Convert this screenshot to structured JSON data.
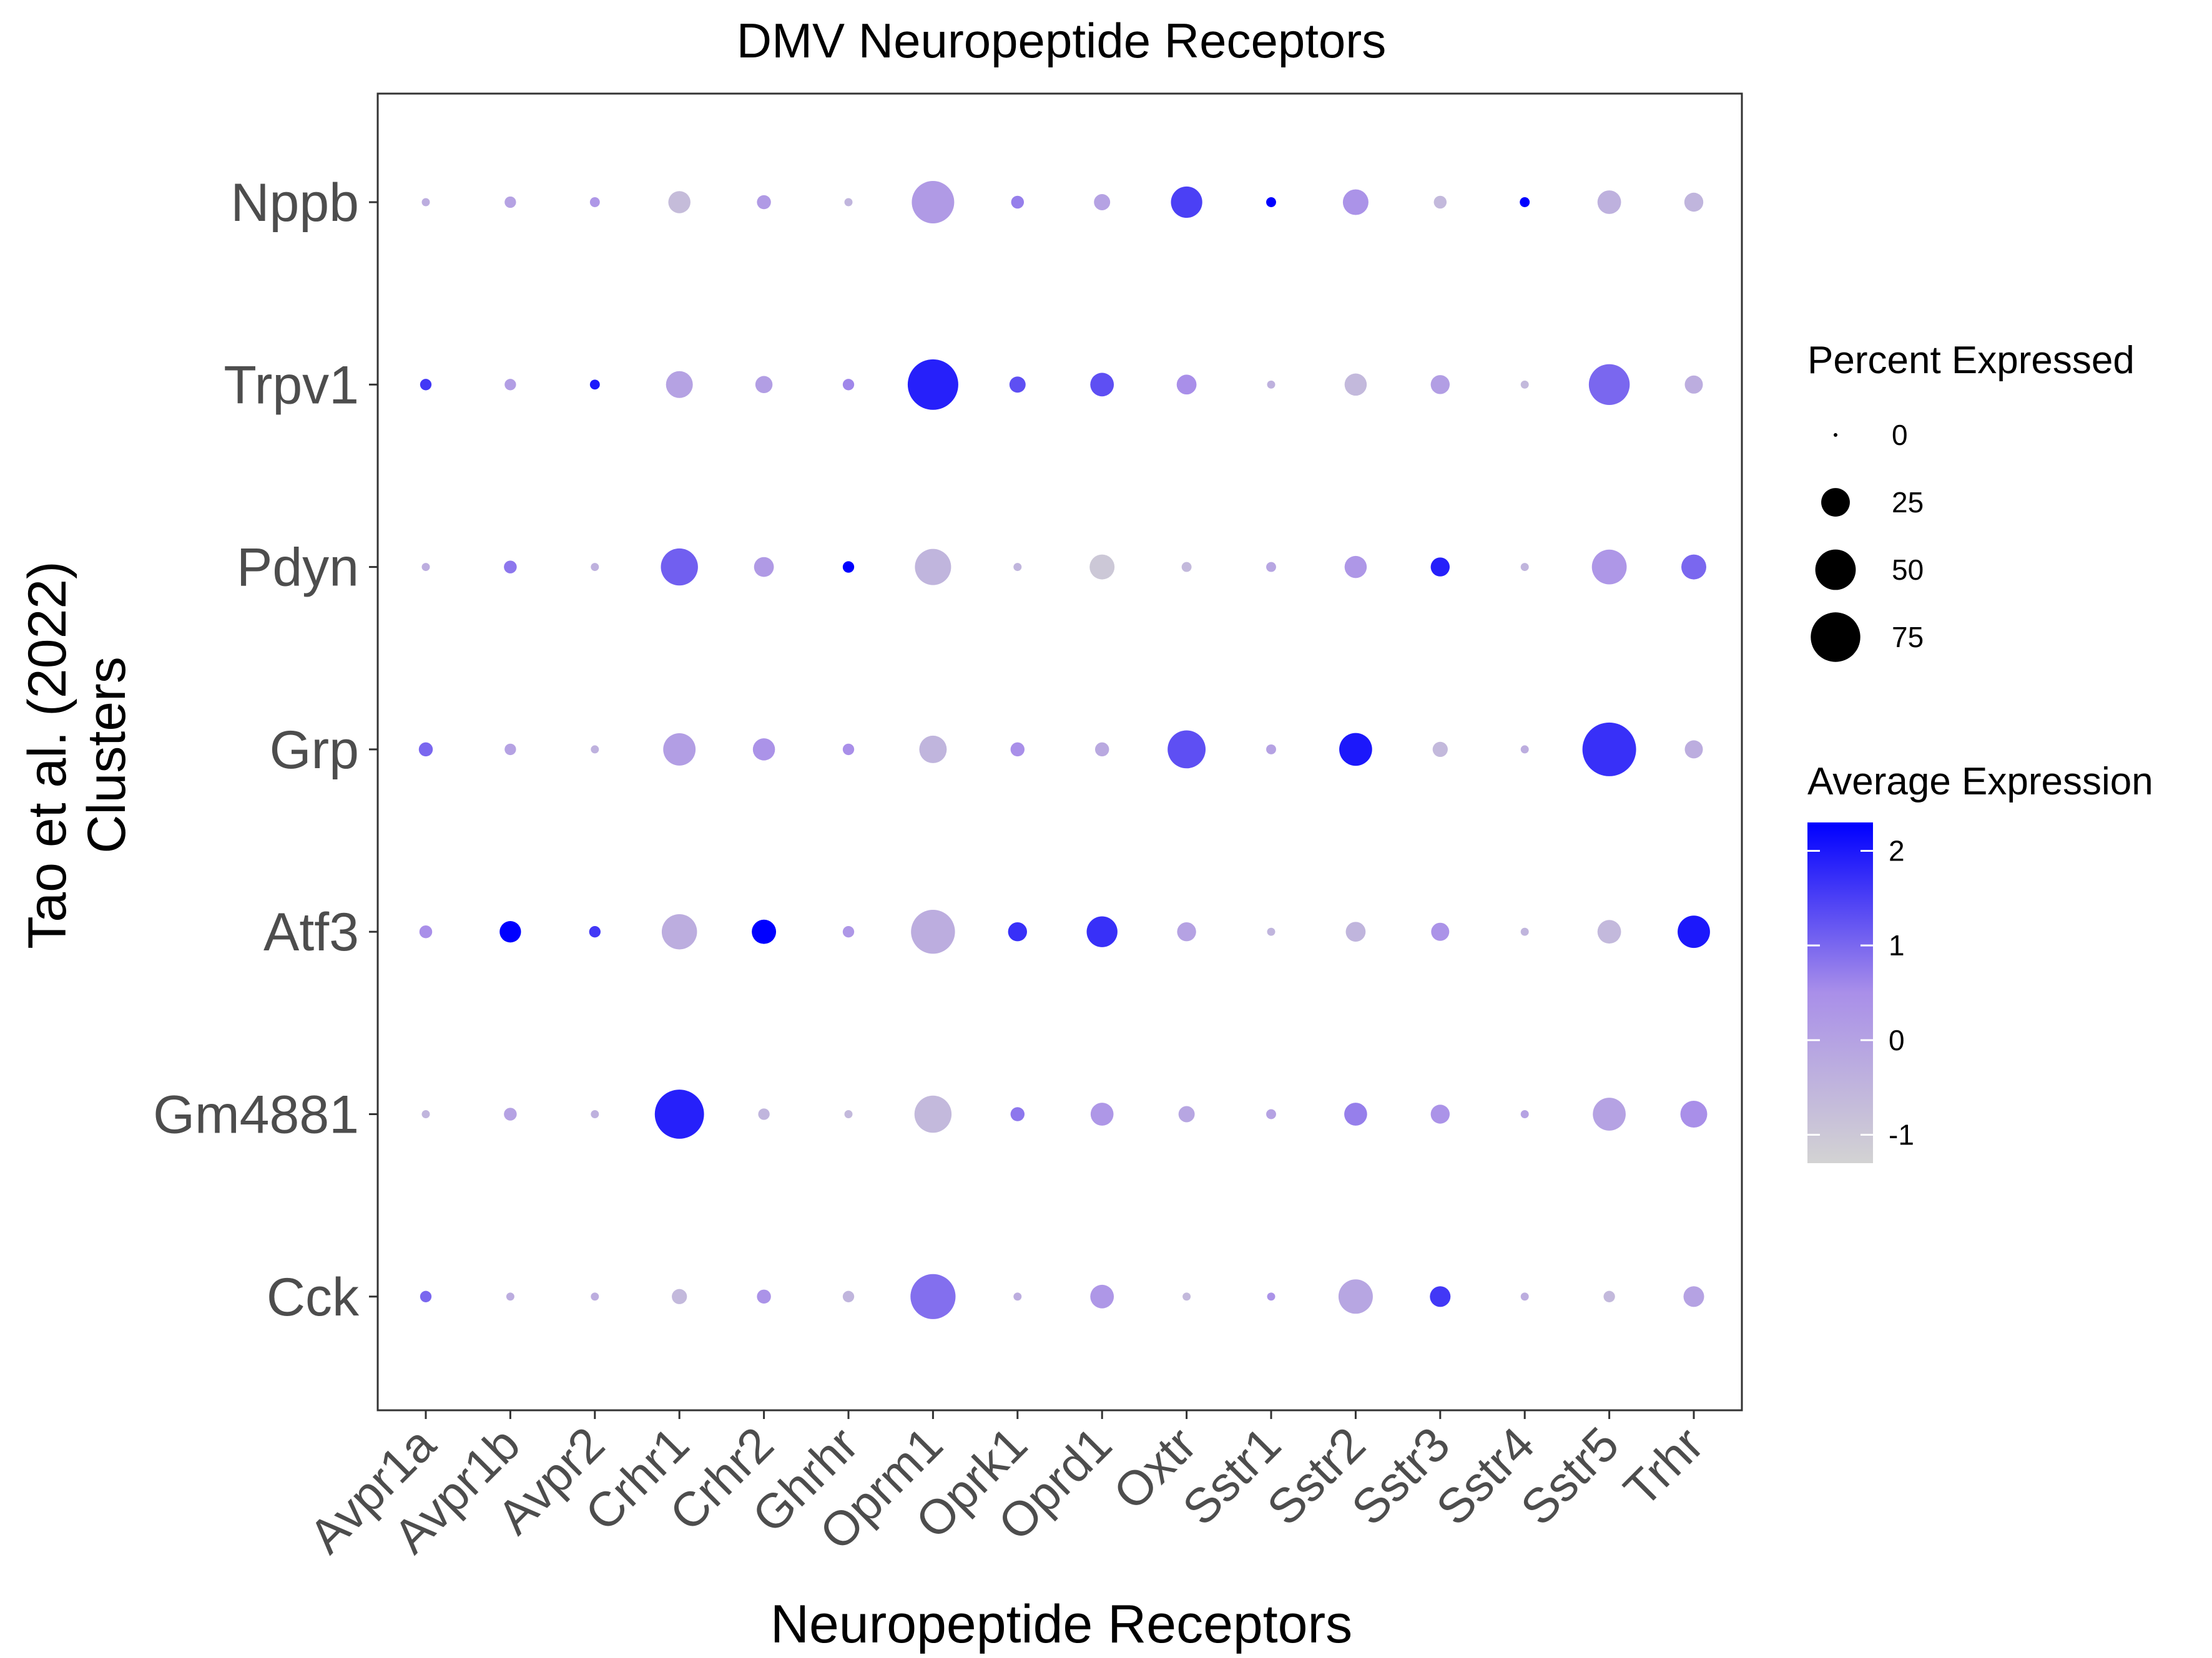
{
  "chart_data": {
    "type": "dot",
    "title": "DMV Neuropeptide Receptors",
    "xlabel": "Neuropeptide Receptors",
    "ylabel_lines": [
      "Tao et al. (2022)",
      "Clusters"
    ],
    "x_categories": [
      "Avpr1a",
      "Avpr1b",
      "Avpr2",
      "Crhr1",
      "Crhr2",
      "Ghrhr",
      "Oprm1",
      "Oprk1",
      "Oprd1",
      "Oxtr",
      "Sstr1",
      "Sstr2",
      "Sstr3",
      "Sstr4",
      "Sstr5",
      "Trhr"
    ],
    "y_categories": [
      "Nppb",
      "Trpv1",
      "Pdyn",
      "Grp",
      "Atf3",
      "Gm4881",
      "Cck"
    ],
    "size_legend": {
      "title": "Percent Expressed",
      "breaks": [
        0,
        25,
        50,
        75
      ]
    },
    "color_legend": {
      "title": "Average Expression",
      "breaks": [
        -1,
        0,
        1,
        2
      ],
      "range": [
        -1.3,
        2.3
      ],
      "low_color": "#d3d3d3",
      "high_color": "#0000ff"
    },
    "series": [
      {
        "name": "Nppb",
        "pct": [
          2,
          4,
          3,
          15,
          6,
          2,
          55,
          5,
          8,
          30,
          3,
          20,
          5,
          3,
          17,
          11
        ],
        "avg": [
          -0.3,
          0.0,
          0.3,
          -0.7,
          0.2,
          -0.5,
          0.2,
          0.7,
          0.0,
          1.5,
          2.3,
          0.4,
          -0.6,
          2.3,
          -0.4,
          -0.5
        ]
      },
      {
        "name": "Trpv1",
        "pct": [
          4,
          4,
          3,
          22,
          9,
          4,
          78,
          8,
          17,
          12,
          2,
          15,
          11,
          2,
          51,
          10
        ],
        "avg": [
          1.6,
          0.1,
          2.0,
          0.0,
          0.1,
          0.6,
          1.9,
          1.3,
          1.3,
          0.5,
          -0.4,
          -0.6,
          0.1,
          -0.6,
          1.0,
          -0.3
        ]
      },
      {
        "name": "Pdyn",
        "pct": [
          2,
          5,
          2,
          42,
          12,
          4,
          40,
          2,
          19,
          3,
          3,
          15,
          11,
          2,
          37,
          19
        ],
        "avg": [
          -0.3,
          0.8,
          -0.4,
          1.1,
          0.2,
          2.3,
          -0.5,
          -0.5,
          -1.0,
          -0.6,
          -0.1,
          0.3,
          1.9,
          -0.5,
          0.3,
          1.0
        ]
      },
      {
        "name": "Grp",
        "pct": [
          6,
          4,
          2,
          32,
          15,
          4,
          23,
          6,
          6,
          44,
          3,
          33,
          7,
          2,
          88,
          10
        ],
        "avg": [
          1.0,
          0.0,
          -0.4,
          0.1,
          0.4,
          0.5,
          -0.5,
          0.5,
          -0.2,
          1.3,
          0.0,
          2.0,
          -0.6,
          -0.3,
          1.7,
          -0.3
        ]
      },
      {
        "name": "Atf3",
        "pct": [
          5,
          14,
          4,
          38,
          18,
          4,
          59,
          11,
          29,
          11,
          2,
          12,
          10,
          2,
          17,
          32
        ],
        "avg": [
          0.5,
          2.3,
          1.6,
          -0.3,
          2.3,
          0.3,
          -0.3,
          1.7,
          1.7,
          0.0,
          -0.5,
          -0.5,
          0.4,
          -0.5,
          -0.6,
          2.0
        ]
      },
      {
        "name": "Gm4881",
        "pct": [
          2,
          5,
          2,
          74,
          4,
          2,
          42,
          6,
          16,
          8,
          3,
          16,
          11,
          2,
          33,
          22
        ],
        "avg": [
          -0.5,
          0.0,
          -0.4,
          1.9,
          -0.5,
          -0.6,
          -0.6,
          0.8,
          0.3,
          -0.1,
          0.0,
          0.7,
          0.4,
          0.0,
          0.0,
          0.5
        ]
      },
      {
        "name": "Cck",
        "pct": [
          4,
          2,
          2,
          7,
          6,
          4,
          62,
          2,
          17,
          2,
          2,
          36,
          13,
          2,
          4,
          13
        ],
        "avg": [
          1.0,
          -0.3,
          -0.3,
          -0.6,
          0.4,
          -0.5,
          0.9,
          -0.3,
          0.3,
          -0.6,
          0.4,
          -0.1,
          1.6,
          -0.3,
          -0.6,
          0.0
        ]
      }
    ]
  }
}
